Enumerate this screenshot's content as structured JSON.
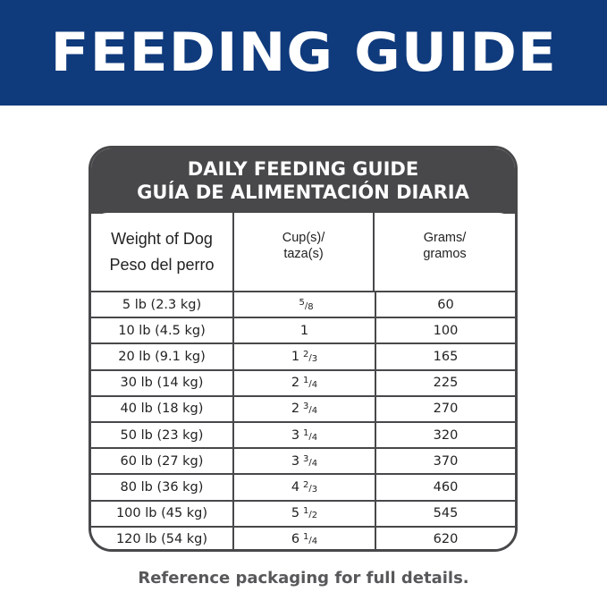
{
  "banner": {
    "title": "FEEDING GUIDE",
    "color": "#0f3a7c"
  },
  "card": {
    "title_en": "DAILY FEEDING GUIDE",
    "title_es": "GUÍA DE ALIMENTACIÓN DIARIA"
  },
  "headers": {
    "weight_en": "Weight of Dog",
    "weight_es": "Peso del perro",
    "cups_en": "Cup(s)/",
    "cups_es": "taza(s)",
    "grams_en": "Grams/",
    "grams_es": "gramos"
  },
  "rows": [
    {
      "weight": "5 lb (2.3 kg)",
      "cups_whole": "",
      "cups_num": "5",
      "cups_den": "8",
      "grams": "60"
    },
    {
      "weight": "10 lb (4.5 kg)",
      "cups_whole": "1",
      "cups_num": "",
      "cups_den": "",
      "grams": "100"
    },
    {
      "weight": "20 lb (9.1 kg)",
      "cups_whole": "1",
      "cups_num": "2",
      "cups_den": "3",
      "grams": "165"
    },
    {
      "weight": "30 lb (14 kg)",
      "cups_whole": "2",
      "cups_num": "1",
      "cups_den": "4",
      "grams": "225"
    },
    {
      "weight": "40 lb (18 kg)",
      "cups_whole": "2",
      "cups_num": "3",
      "cups_den": "4",
      "grams": "270"
    },
    {
      "weight": "50 lb (23 kg)",
      "cups_whole": "3",
      "cups_num": "1",
      "cups_den": "4",
      "grams": "320"
    },
    {
      "weight": "60 lb (27 kg)",
      "cups_whole": "3",
      "cups_num": "3",
      "cups_den": "4",
      "grams": "370"
    },
    {
      "weight": "80 lb (36 kg)",
      "cups_whole": "4",
      "cups_num": "2",
      "cups_den": "3",
      "grams": "460"
    },
    {
      "weight": "100 lb (45 kg)",
      "cups_whole": "5",
      "cups_num": "1",
      "cups_den": "2",
      "grams": "545"
    },
    {
      "weight": "120 lb (54 kg)",
      "cups_whole": "6",
      "cups_num": "1",
      "cups_den": "4",
      "grams": "620"
    }
  ],
  "footer": {
    "note": "Reference packaging for full details."
  }
}
